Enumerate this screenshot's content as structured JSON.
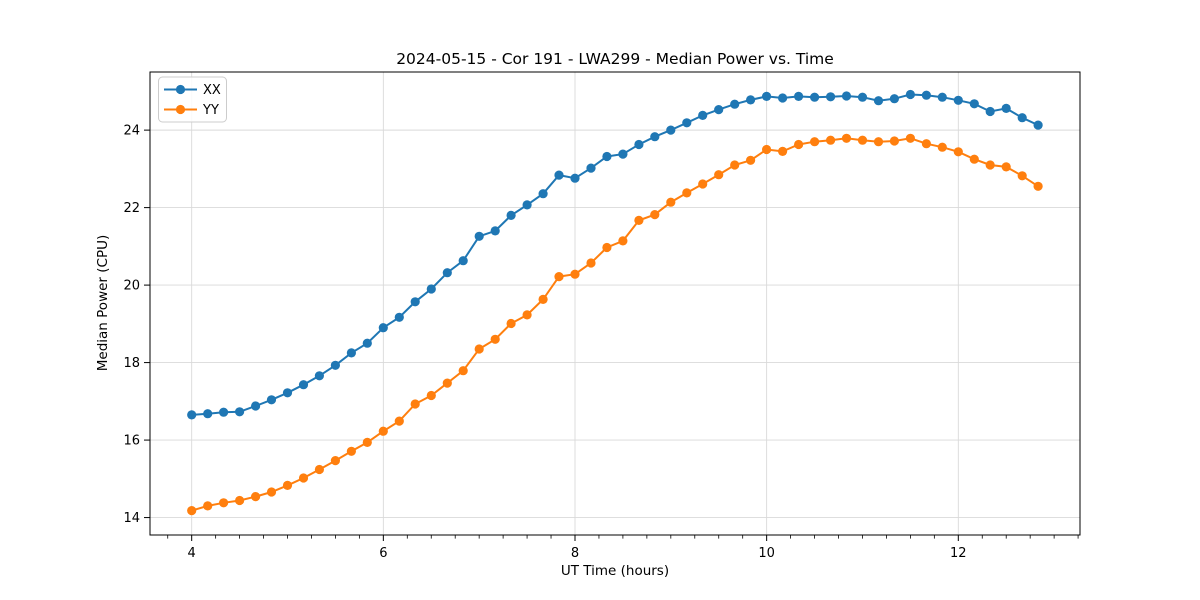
{
  "chart_data": {
    "type": "line",
    "title": "2024-05-15 - Cor 191 - LWA299 - Median Power vs. Time",
    "xlabel": "UT Time (hours)",
    "ylabel": "Median Power (CPU)",
    "xlim": [
      3.565,
      13.27
    ],
    "ylim": [
      13.55,
      25.5
    ],
    "x_major_ticks": [
      4,
      6,
      8,
      10,
      12
    ],
    "x_minor_tick_step": 0.25,
    "y_major_ticks": [
      14,
      16,
      18,
      20,
      22,
      24
    ],
    "grid": true,
    "grid_color": "#d9d9d9",
    "spine_color": "#000000",
    "legend_position": "upper-left",
    "x": [
      4.0,
      4.167,
      4.333,
      4.5,
      4.667,
      4.833,
      5.0,
      5.167,
      5.333,
      5.5,
      5.667,
      5.833,
      6.0,
      6.167,
      6.333,
      6.5,
      6.667,
      6.833,
      7.0,
      7.167,
      7.333,
      7.5,
      7.667,
      7.833,
      8.0,
      8.167,
      8.333,
      8.5,
      8.667,
      8.833,
      9.0,
      9.167,
      9.333,
      9.5,
      9.667,
      9.833,
      10.0,
      10.167,
      10.333,
      10.5,
      10.667,
      10.833,
      11.0,
      11.167,
      11.333,
      11.5,
      11.667,
      11.833,
      12.0,
      12.167,
      12.333,
      12.5,
      12.667,
      12.833
    ],
    "series": [
      {
        "name": "XX",
        "color": "#1f77b4",
        "values": [
          16.65,
          16.68,
          16.72,
          16.73,
          16.88,
          17.04,
          17.22,
          17.43,
          17.66,
          17.93,
          18.25,
          18.5,
          18.9,
          19.17,
          19.57,
          19.9,
          20.32,
          20.63,
          21.26,
          21.4,
          21.8,
          22.07,
          22.36,
          22.84,
          22.76,
          23.02,
          23.32,
          23.38,
          23.63,
          23.83,
          24.0,
          24.19,
          24.38,
          24.53,
          24.67,
          24.78,
          24.87,
          24.83,
          24.87,
          24.85,
          24.86,
          24.88,
          24.85,
          24.76,
          24.81,
          24.92,
          24.9,
          24.85,
          24.77,
          24.68,
          24.48,
          24.56,
          24.32,
          24.13
        ]
      },
      {
        "name": "YY",
        "color": "#ff7f0e",
        "values": [
          14.18,
          14.3,
          14.38,
          14.44,
          14.54,
          14.66,
          14.83,
          15.02,
          15.24,
          15.47,
          15.71,
          15.94,
          16.23,
          16.49,
          16.93,
          17.15,
          17.47,
          17.79,
          18.35,
          18.6,
          19.01,
          19.23,
          19.63,
          20.22,
          20.28,
          20.57,
          20.97,
          21.14,
          21.67,
          21.82,
          22.14,
          22.38,
          22.61,
          22.85,
          23.1,
          23.22,
          23.5,
          23.45,
          23.63,
          23.7,
          23.74,
          23.79,
          23.74,
          23.7,
          23.72,
          23.79,
          23.65,
          23.56,
          23.44,
          23.25,
          23.1,
          23.05,
          22.82,
          22.55
        ]
      }
    ]
  }
}
